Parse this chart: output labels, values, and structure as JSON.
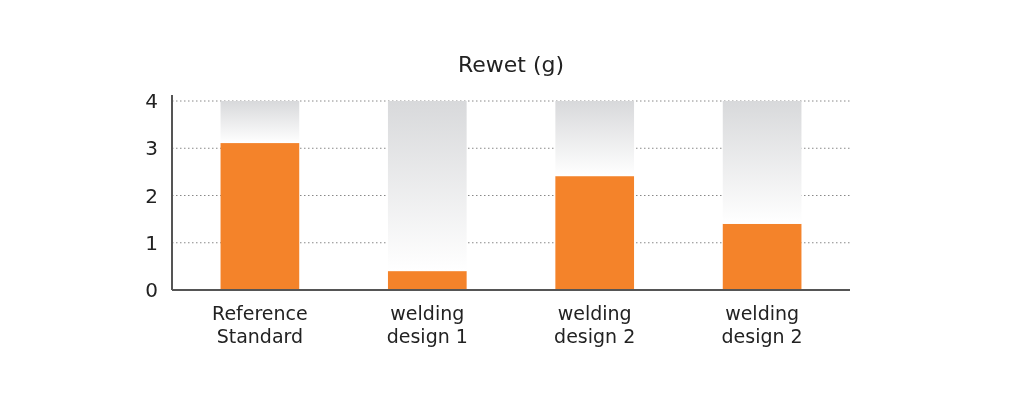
{
  "chart_data": {
    "type": "bar",
    "title": "Rewet (g)",
    "stacked": true,
    "categories": [
      "Reference Standard",
      "welding design 1",
      "welding design 2",
      "welding design 2"
    ],
    "series": [
      {
        "color": "#f4832a",
        "values": [
          3.11,
          0.4,
          2.41,
          1.4
        ]
      },
      {
        "color": "#d8d9db",
        "values": [
          0.89,
          3.6,
          1.59,
          2.6
        ]
      }
    ],
    "ylim": [
      0,
      4
    ],
    "yticks": [
      0,
      1,
      2,
      3,
      4
    ],
    "grid": "y"
  }
}
